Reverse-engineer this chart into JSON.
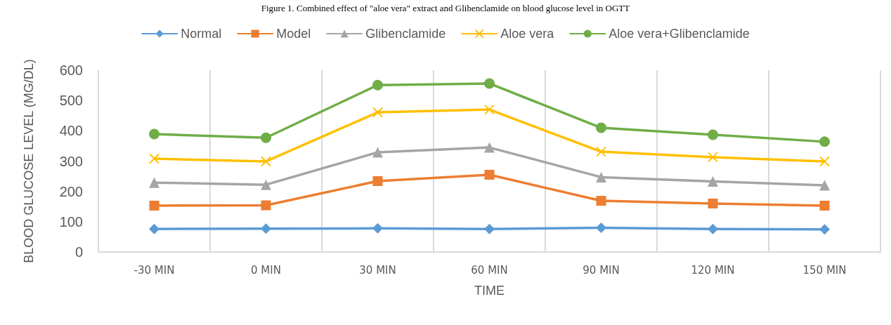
{
  "chart_data": {
    "type": "line",
    "title": "Figure 1. Combined effect of \"aloe vera\" extract and Glibenclamide on blood glucose level in OGTT",
    "xlabel": "TIME",
    "ylabel": "BLOOD GLUCOSE LEVEL (MG/DL)",
    "categories": [
      "-30 MIN",
      "0 MIN",
      "30 MIN",
      "60 MIN",
      "90 MIN",
      "120 MIN",
      "150 MIN"
    ],
    "series": [
      {
        "name": "Normal",
        "color": "#5b9bd5",
        "marker": "diamond",
        "values": [
          76,
          77,
          78,
          76,
          80,
          76,
          75
        ]
      },
      {
        "name": "Model",
        "color": "#ed7d31",
        "marker": "square",
        "values": [
          153,
          154,
          234,
          255,
          169,
          160,
          153
        ]
      },
      {
        "name": "Glibenclamide",
        "color": "#a5a5a5",
        "marker": "triangle",
        "values": [
          229,
          222,
          329,
          345,
          247,
          233,
          220
        ]
      },
      {
        "name": "Aloe vera",
        "color": "#ffc000",
        "marker": "cross",
        "values": [
          308,
          299,
          461,
          470,
          331,
          313,
          299
        ]
      },
      {
        "name": "Aloe vera+Glibenclamide",
        "color": "#70ad47",
        "marker": "circle",
        "values": [
          389,
          377,
          551,
          556,
          410,
          387,
          364
        ]
      }
    ],
    "ylim": [
      0,
      600
    ],
    "yticks": [
      0,
      100,
      200,
      300,
      400,
      500,
      600
    ],
    "grid": "x",
    "legend": "top"
  }
}
